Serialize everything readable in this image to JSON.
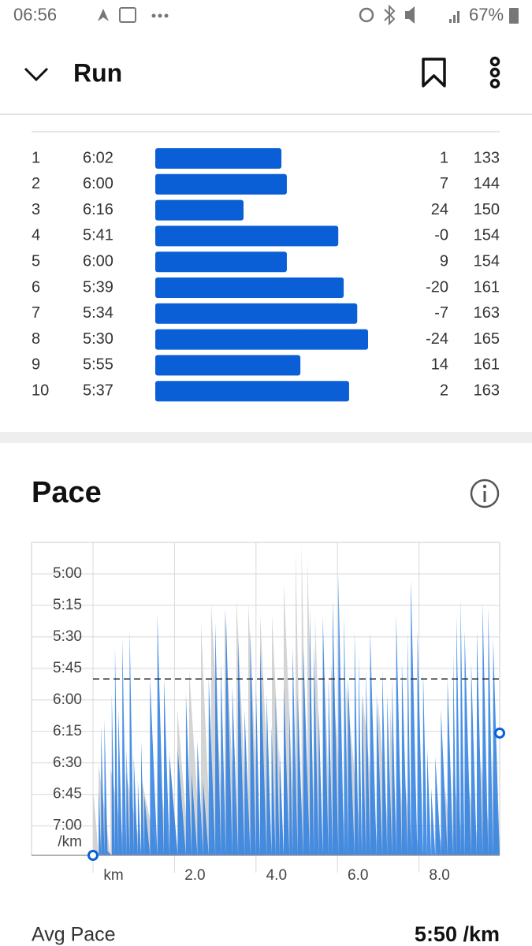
{
  "status_bar": {
    "time": "06:56",
    "battery": "67%"
  },
  "header": {
    "title": "Run"
  },
  "splits": {
    "rows": [
      [
        "1",
        "6:02",
        "1",
        "133"
      ],
      [
        "2",
        "6:00",
        "7",
        "144"
      ],
      [
        "3",
        "6:16",
        "24",
        "150"
      ],
      [
        "4",
        "5:41",
        "-0",
        "154"
      ],
      [
        "5",
        "6:00",
        "9",
        "154"
      ],
      [
        "6",
        "5:39",
        "-20",
        "161"
      ],
      [
        "7",
        "5:34",
        "-7",
        "163"
      ],
      [
        "8",
        "5:30",
        "-24",
        "165"
      ],
      [
        "9",
        "5:55",
        "14",
        "161"
      ],
      [
        "10",
        "5:37",
        "2",
        "163"
      ]
    ]
  },
  "chart_data": {
    "type": "area",
    "title": "Pace",
    "xlim": [
      0,
      9.98
    ],
    "xticks": [
      {
        "value": 0,
        "label": "km"
      },
      {
        "value": 2,
        "label": "2.0"
      },
      {
        "value": 4,
        "label": "4.0"
      },
      {
        "value": 6,
        "label": "6.0"
      },
      {
        "value": 8,
        "label": "8.0"
      }
    ],
    "ylim": [
      285,
      434
    ],
    "y_reversed": true,
    "y_unit": "/km",
    "yticks": [
      {
        "value": 300,
        "label": "5:00"
      },
      {
        "value": 315,
        "label": "5:15"
      },
      {
        "value": 330,
        "label": "5:30"
      },
      {
        "value": 345,
        "label": "5:45"
      },
      {
        "value": 360,
        "label": "6:00"
      },
      {
        "value": 375,
        "label": "6:15"
      },
      {
        "value": 390,
        "label": "6:30"
      },
      {
        "value": 405,
        "label": "6:45"
      },
      {
        "value": 420,
        "label": "7:00"
      }
    ],
    "grid": true,
    "avg_line": {
      "value": 350,
      "label": "5:50 /km"
    },
    "series": [
      {
        "color": "#d4d4d4",
        "x": [
          0,
          0.14,
          0.43,
          0.81,
          1.2,
          1.58,
          1.87,
          2.07,
          2.36,
          2.65,
          2.9,
          3.23,
          3.52,
          3.81,
          4.1,
          4.39,
          4.68,
          4.97,
          5.12,
          5.26,
          5.45,
          5.64,
          5.84,
          6.22,
          6.61,
          7.0,
          7.29,
          7.48,
          7.67,
          7.86,
          8.06,
          8.25,
          8.44,
          8.64,
          8.83,
          9.12,
          9.51,
          9.8,
          9.98
        ],
        "values": [
          402,
          390.8,
          392.6,
          394.5,
          398.3,
          387,
          383.3,
          364.5,
          345.8,
          323.3,
          313.9,
          315.8,
          312,
          313.9,
          319.5,
          319.5,
          304.5,
          289.5,
          285.8,
          293.3,
          319.5,
          323.3,
          342,
          353.3,
          357,
          360.8,
          362.6,
          383.3,
          402,
          420.8,
          432,
          433.9,
          420.8,
          402,
          394.5,
          390.8,
          388.9,
          387,
          383.3
        ]
      },
      {
        "color": "#2a7de1",
        "x": [
          0,
          0.14,
          0.2,
          0.28,
          0.36,
          0.46,
          0.54,
          0.62,
          0.72,
          0.82,
          0.9,
          1.0,
          1.1,
          1.18,
          1.26,
          1.4,
          1.58,
          1.74,
          1.88,
          2.08,
          2.28,
          2.42,
          2.56,
          2.7,
          2.84,
          3.0,
          3.14,
          3.26,
          3.42,
          3.56,
          3.72,
          3.86,
          4.0,
          4.1,
          4.26,
          4.38,
          4.48,
          4.58,
          4.68,
          4.82,
          4.9,
          5.02,
          5.16,
          5.32,
          5.42,
          5.54,
          5.64,
          5.78,
          5.88,
          6.02,
          6.16,
          6.26,
          6.42,
          6.52,
          6.6,
          6.7,
          6.8,
          6.96,
          7.1,
          7.22,
          7.34,
          7.44,
          7.58,
          7.72,
          7.8,
          7.96,
          8.1,
          8.2,
          8.3,
          8.4,
          8.54,
          8.7,
          8.84,
          8.92,
          9.02,
          9.12,
          9.28,
          9.42,
          9.56,
          9.7,
          9.82,
          9.98
        ],
        "values": [
          434,
          402,
          372,
          369,
          432,
          357,
          334.5,
          364.5,
          330.8,
          383.3,
          327,
          387,
          398.3,
          379.5,
          405.8,
          349.5,
          319.5,
          349.5,
          387,
          383.3,
          357,
          394.5,
          379.5,
          398.3,
          349.5,
          323.3,
          342,
          317.6,
          353.3,
          330.8,
          364.5,
          327,
          353.3,
          334.5,
          357,
          372,
          357,
          383.3,
          353.3,
          364.5,
          334.5,
          357,
          334.5,
          315.8,
          334.5,
          364.5,
          319.5,
          349.5,
          312,
          300.8,
          319.5,
          349.5,
          327,
          338.3,
          357,
          345.8,
          327,
          357,
          345.8,
          357,
          349.5,
          319.5,
          342,
          327,
          302.6,
          327,
          345.8,
          383.3,
          402,
          387,
          364.5,
          349.5,
          338.3,
          319.5,
          312,
          327,
          342,
          327,
          313.9,
          315.8,
          330.8,
          375.8
        ]
      }
    ]
  },
  "summary": {
    "label": "Avg Pace"
  }
}
